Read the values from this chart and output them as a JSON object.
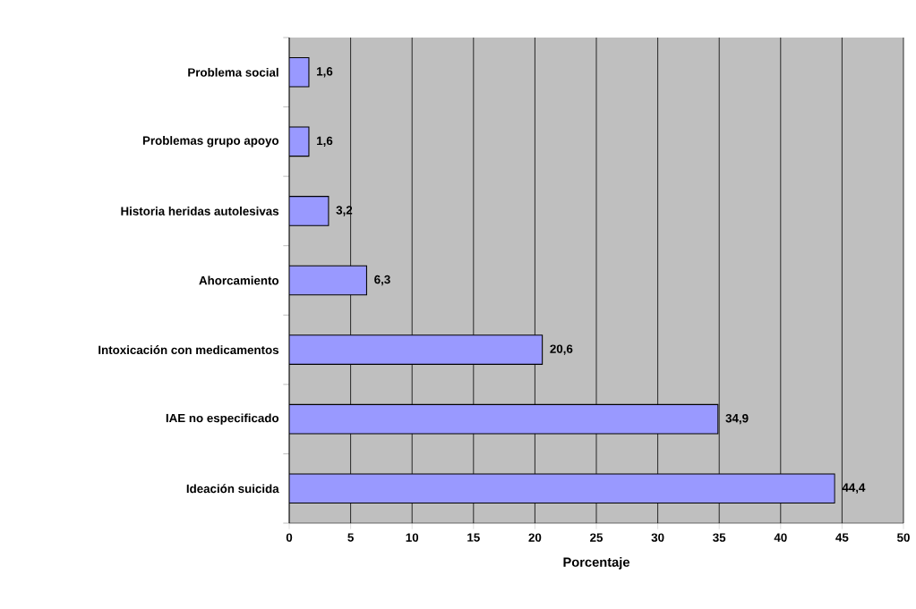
{
  "chart_data": {
    "type": "bar",
    "orientation": "horizontal",
    "xlabel": "Porcentaje",
    "categories": [
      "Problema social",
      "Problemas grupo apoyo",
      "Historia heridas autolesivas",
      "Ahorcamiento",
      "Intoxicación con medicamentos",
      "IAE no especificado",
      "Ideación suicida"
    ],
    "values": [
      1.6,
      1.6,
      3.2,
      6.3,
      20.6,
      34.9,
      44.4
    ],
    "value_labels": [
      "1,6",
      "1,6",
      "3,2",
      "6,3",
      "20,6",
      "34,9",
      "44,4"
    ],
    "color": "#9999ff",
    "xlim": [
      0,
      50
    ],
    "xticks": [
      0,
      5,
      10,
      15,
      20,
      25,
      30,
      35,
      40,
      45,
      50
    ],
    "grid": "x"
  }
}
